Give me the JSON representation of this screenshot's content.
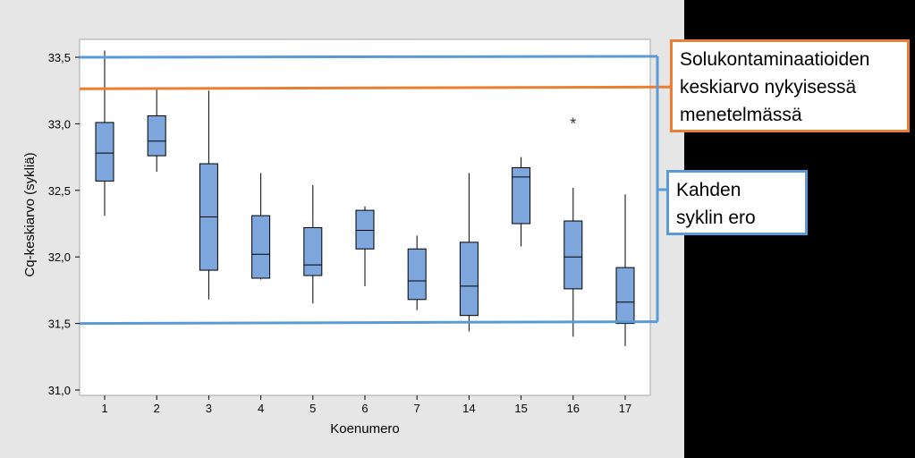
{
  "chart_data": {
    "type": "boxplot",
    "xlabel": "Koenumero",
    "ylabel": "Cq-keskiarvo (sykliä)",
    "categories": [
      "1",
      "2",
      "3",
      "4",
      "5",
      "6",
      "7",
      "14",
      "15",
      "16",
      "17"
    ],
    "ylim": [
      31.0,
      33.55
    ],
    "yticks": [
      "31,0",
      "31,5",
      "32,0",
      "32,5",
      "33,0",
      "33,5"
    ],
    "ytick_values": [
      31.0,
      31.5,
      32.0,
      32.5,
      33.0,
      33.5
    ],
    "grid": false,
    "box_color": "#7ca6dc",
    "boxes": [
      {
        "label": "1",
        "min": 32.31,
        "q1": 32.57,
        "median": 32.78,
        "q3": 33.01,
        "max": 33.55
      },
      {
        "label": "2",
        "min": 32.64,
        "q1": 32.76,
        "median": 32.87,
        "q3": 33.06,
        "max": 33.26
      },
      {
        "label": "3",
        "min": 31.68,
        "q1": 31.9,
        "median": 32.3,
        "q3": 32.7,
        "max": 33.25
      },
      {
        "label": "4",
        "min": 31.83,
        "q1": 31.84,
        "median": 32.02,
        "q3": 32.31,
        "max": 32.63
      },
      {
        "label": "5",
        "min": 31.65,
        "q1": 31.86,
        "median": 31.94,
        "q3": 32.22,
        "max": 32.54
      },
      {
        "label": "6",
        "min": 31.78,
        "q1": 32.06,
        "median": 32.2,
        "q3": 32.35,
        "max": 32.38
      },
      {
        "label": "7",
        "min": 31.6,
        "q1": 31.68,
        "median": 31.82,
        "q3": 32.06,
        "max": 32.16
      },
      {
        "label": "14",
        "min": 31.44,
        "q1": 31.56,
        "median": 31.78,
        "q3": 32.11,
        "max": 32.63
      },
      {
        "label": "15",
        "min": 32.08,
        "q1": 32.25,
        "median": 32.6,
        "q3": 32.67,
        "max": 32.75
      },
      {
        "label": "16",
        "min": 31.4,
        "q1": 31.76,
        "median": 32.0,
        "q3": 32.27,
        "max": 32.52,
        "outliers": [
          33.02
        ]
      },
      {
        "label": "17",
        "min": 31.33,
        "q1": 31.5,
        "median": 31.66,
        "q3": 31.92,
        "max": 32.47
      }
    ],
    "reference_lines": [
      {
        "value": 33.5,
        "color": "#5b9bd5"
      },
      {
        "value": 33.27,
        "color": "#ed7d31"
      },
      {
        "value": 31.5,
        "color": "#5b9bd5"
      }
    ],
    "annotations": [
      {
        "lines": [
          "Solukontaminaatioiden",
          "keskiarvo nykyisessä",
          "menetelmässä"
        ],
        "border_color": "#ed7d31"
      },
      {
        "lines": [
          "Kahden",
          "syklin ero"
        ],
        "border_color": "#5b9bd5"
      }
    ]
  }
}
